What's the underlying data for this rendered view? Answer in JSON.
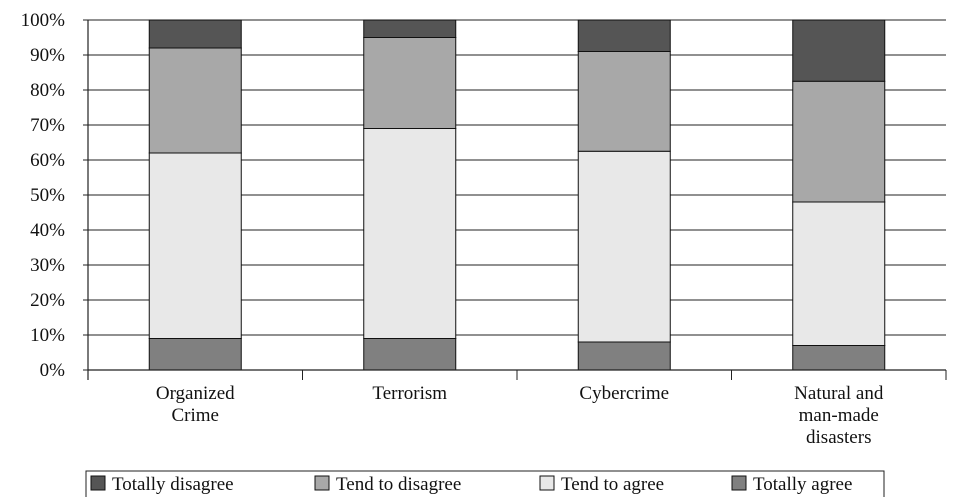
{
  "chart_data": {
    "type": "bar",
    "stacked": true,
    "categories": [
      [
        "Organized",
        "Crime"
      ],
      [
        "Terrorism"
      ],
      [
        "Cybercrime"
      ],
      [
        "Natural and",
        "man-made",
        "disasters"
      ]
    ],
    "series": [
      {
        "name": "Totally agree",
        "color": "#808080",
        "values": [
          9,
          9,
          8,
          7
        ]
      },
      {
        "name": "Tend to agree",
        "color": "#e8e8e8",
        "values": [
          53,
          60,
          54.5,
          41
        ]
      },
      {
        "name": "Tend to disagree",
        "color": "#a8a8a8",
        "values": [
          30,
          26,
          28.5,
          34.5
        ]
      },
      {
        "name": "Totally disagree",
        "color": "#555555",
        "values": [
          8,
          5,
          9,
          17.5
        ]
      }
    ],
    "legend_order": [
      "Totally disagree",
      "Tend to disagree",
      "Tend to agree",
      "Totally agree"
    ],
    "y_ticks": [
      "0%",
      "10%",
      "20%",
      "30%",
      "40%",
      "50%",
      "60%",
      "70%",
      "80%",
      "90%",
      "100%"
    ],
    "ylim": [
      0,
      100
    ],
    "grid": true,
    "legend_position": "bottom"
  }
}
